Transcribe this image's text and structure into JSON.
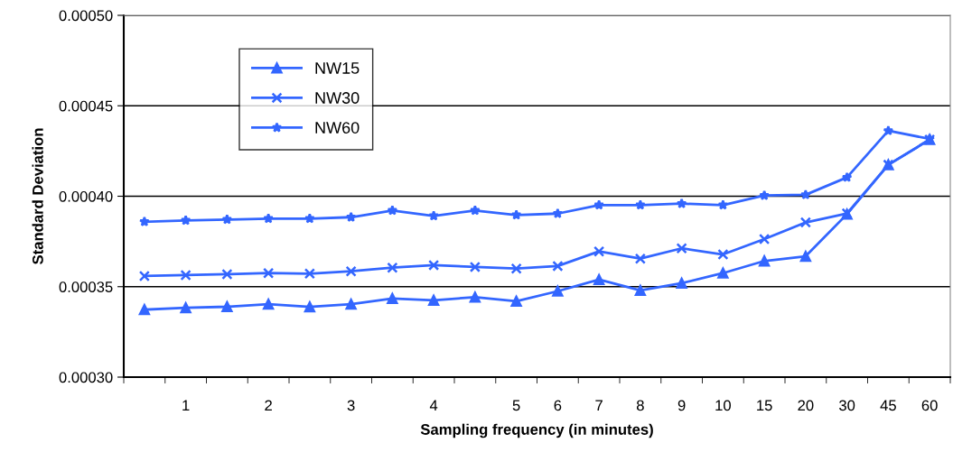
{
  "chart_data": {
    "type": "line",
    "xlabel": "Sampling frequency (in minutes)",
    "ylabel": "Standard Deviation",
    "categories": [
      null,
      "1",
      null,
      "2",
      null,
      "3",
      null,
      "4",
      null,
      "5",
      "6",
      "7",
      "8",
      "9",
      "10",
      "15",
      "20",
      "30",
      "45",
      "60"
    ],
    "series": [
      {
        "name": "NW15",
        "color": "#3366ff",
        "marker": "triangle",
        "values": [
          0.0003373,
          0.0003383,
          0.0003389,
          0.0003403,
          0.0003388,
          0.0003403,
          0.0003435,
          0.0003425,
          0.0003442,
          0.000342,
          0.0003475,
          0.0003539,
          0.0003479,
          0.0003519,
          0.0003575,
          0.0003642,
          0.0003668,
          0.0003901,
          0.0004174,
          0.0004313
        ]
      },
      {
        "name": "NW30",
        "color": "#3366ff",
        "marker": "cross",
        "values": [
          0.0003559,
          0.0003564,
          0.0003569,
          0.0003575,
          0.0003572,
          0.0003585,
          0.0003605,
          0.0003619,
          0.0003609,
          0.00036,
          0.0003614,
          0.0003695,
          0.0003655,
          0.0003712,
          0.0003678,
          0.0003763,
          0.0003855,
          0.0003905,
          0.0004174,
          0.0004313
        ]
      },
      {
        "name": "NW60",
        "color": "#3366ff",
        "marker": "star",
        "values": [
          0.0003859,
          0.0003866,
          0.0003871,
          0.0003876,
          0.0003876,
          0.0003884,
          0.0003921,
          0.0003891,
          0.0003921,
          0.0003896,
          0.0003904,
          0.0003951,
          0.0003951,
          0.0003959,
          0.0003951,
          0.0004004,
          0.0004008,
          0.0004104,
          0.0004362,
          0.0004317
        ]
      }
    ],
    "ylim": [
      0.0003,
      0.0005
    ],
    "yticks": [
      {
        "value": 0.0003,
        "label": "0.00030"
      },
      {
        "value": 0.00035,
        "label": "0.00035"
      },
      {
        "value": 0.0004,
        "label": "0.00040"
      },
      {
        "value": 0.00045,
        "label": "0.00045"
      },
      {
        "value": 0.0005,
        "label": "0.00050"
      }
    ],
    "grid": "y",
    "legend": "top left",
    "line_style": "solid"
  }
}
